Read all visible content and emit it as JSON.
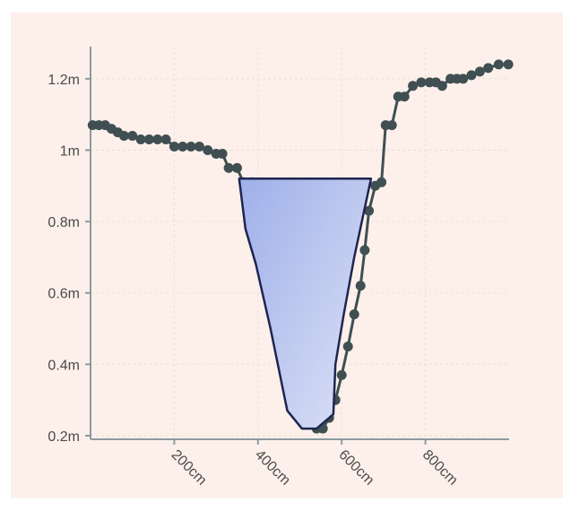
{
  "chart_data": {
    "type": "line",
    "x_ticks": [
      {
        "value": 200,
        "label": "200cm"
      },
      {
        "value": 400,
        "label": "400cm"
      },
      {
        "value": 600,
        "label": "600cm"
      },
      {
        "value": 800,
        "label": "800cm"
      }
    ],
    "y_ticks": [
      {
        "value": 0.2,
        "label": "0.2m"
      },
      {
        "value": 0.4,
        "label": "0.4m"
      },
      {
        "value": 0.6,
        "label": "0.6m"
      },
      {
        "value": 0.8,
        "label": "0.8m"
      },
      {
        "value": 1.0,
        "label": "1m"
      },
      {
        "value": 1.2,
        "label": "1.2m"
      }
    ],
    "xlim": [
      0,
      1000
    ],
    "ylim": [
      0.19,
      1.29
    ],
    "grid": true,
    "series": [
      {
        "type": "line",
        "color": "#3f4f52",
        "points": [
          [
            5,
            1.07
          ],
          [
            20,
            1.07
          ],
          [
            35,
            1.07
          ],
          [
            50,
            1.06
          ],
          [
            65,
            1.05
          ],
          [
            80,
            1.04
          ],
          [
            100,
            1.04
          ],
          [
            120,
            1.03
          ],
          [
            140,
            1.03
          ],
          [
            160,
            1.03
          ],
          [
            180,
            1.03
          ],
          [
            200,
            1.01
          ],
          [
            220,
            1.01
          ],
          [
            240,
            1.01
          ],
          [
            260,
            1.01
          ],
          [
            280,
            1.0
          ],
          [
            300,
            0.99
          ],
          [
            315,
            0.99
          ],
          [
            330,
            0.95
          ],
          [
            350,
            0.95
          ],
          [
            365,
            0.91
          ],
          [
            385,
            0.91
          ],
          [
            420,
            0.75
          ],
          [
            430,
            0.7
          ],
          [
            445,
            0.62
          ],
          [
            458,
            0.55
          ],
          [
            470,
            0.5
          ],
          [
            480,
            0.42
          ],
          [
            495,
            0.36
          ],
          [
            510,
            0.3
          ],
          [
            525,
            0.25
          ],
          [
            540,
            0.22
          ],
          [
            555,
            0.22
          ],
          [
            570,
            0.25
          ],
          [
            585,
            0.3
          ],
          [
            600,
            0.37
          ],
          [
            615,
            0.45
          ],
          [
            630,
            0.54
          ],
          [
            645,
            0.62
          ],
          [
            655,
            0.72
          ],
          [
            665,
            0.83
          ],
          [
            680,
            0.9
          ],
          [
            695,
            0.91
          ],
          [
            705,
            1.07
          ],
          [
            720,
            1.07
          ],
          [
            735,
            1.15
          ],
          [
            750,
            1.15
          ],
          [
            770,
            1.18
          ],
          [
            790,
            1.19
          ],
          [
            810,
            1.19
          ],
          [
            825,
            1.19
          ],
          [
            840,
            1.18
          ],
          [
            860,
            1.2
          ],
          [
            875,
            1.2
          ],
          [
            890,
            1.2
          ],
          [
            910,
            1.21
          ],
          [
            930,
            1.22
          ],
          [
            950,
            1.23
          ],
          [
            975,
            1.24
          ],
          [
            998,
            1.24
          ]
        ]
      }
    ],
    "water_polygon": {
      "color_start": "#9fb0ea",
      "color_end": "#dde2f5",
      "stroke": "#1f2550",
      "points": [
        [
          355,
          0.92
        ],
        [
          370,
          0.78
        ],
        [
          395,
          0.68
        ],
        [
          430,
          0.5
        ],
        [
          470,
          0.27
        ],
        [
          505,
          0.22
        ],
        [
          540,
          0.22
        ],
        [
          580,
          0.26
        ],
        [
          585,
          0.4
        ],
        [
          605,
          0.54
        ],
        [
          630,
          0.7
        ],
        [
          670,
          0.92
        ]
      ]
    }
  }
}
